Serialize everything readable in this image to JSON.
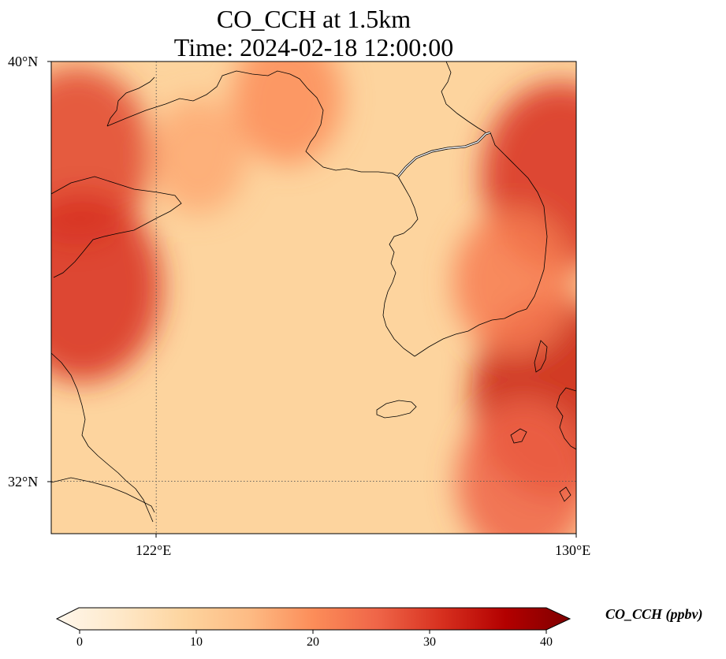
{
  "title": {
    "line1": "CO_CCH at 1.5km",
    "line2": "Time: 2024-02-18 12:00:00"
  },
  "map": {
    "type": "heatmap",
    "extent": {
      "lon": [
        120,
        130
      ],
      "lat": [
        31,
        40
      ]
    },
    "lat_ticks": [
      {
        "value": 40,
        "label": "40°N"
      },
      {
        "value": 32,
        "label": "32°N"
      }
    ],
    "lon_ticks": [
      {
        "value": 122,
        "label": "122°E"
      },
      {
        "value": 130,
        "label": "130°E"
      }
    ],
    "gridlines": "dotted",
    "features": [
      "coastlines",
      "borders"
    ]
  },
  "chart_data": {
    "type": "heatmap",
    "variable": "CO_CCH",
    "units": "ppbv",
    "range": [
      0,
      40
    ],
    "colormap": "OrRd",
    "colors": [
      "#fff7ec",
      "#fee8c8",
      "#fdd49e",
      "#fdbb84",
      "#fc8d59",
      "#ef6548",
      "#d7301f",
      "#b30000",
      "#7f0000"
    ],
    "high_regions": [
      {
        "lon": 120.5,
        "lat": 38.2,
        "value": 28
      },
      {
        "lon": 120.6,
        "lat": 35.7,
        "value": 30
      },
      {
        "lon": 129.7,
        "lat": 37.8,
        "value": 30
      },
      {
        "lon": 129.6,
        "lat": 33.6,
        "value": 32
      },
      {
        "lon": 124.5,
        "lat": 39.3,
        "value": 20
      },
      {
        "lon": 122.8,
        "lat": 38.2,
        "value": 17
      },
      {
        "lon": 128.8,
        "lat": 35.8,
        "value": 22
      },
      {
        "lon": 129.0,
        "lat": 32.0,
        "value": 25
      }
    ],
    "background_value": 10
  },
  "colorbar": {
    "label": "CO_CCH (ppbv)",
    "ticks": [
      "0",
      "10",
      "20",
      "30",
      "40"
    ],
    "extend": "both"
  }
}
